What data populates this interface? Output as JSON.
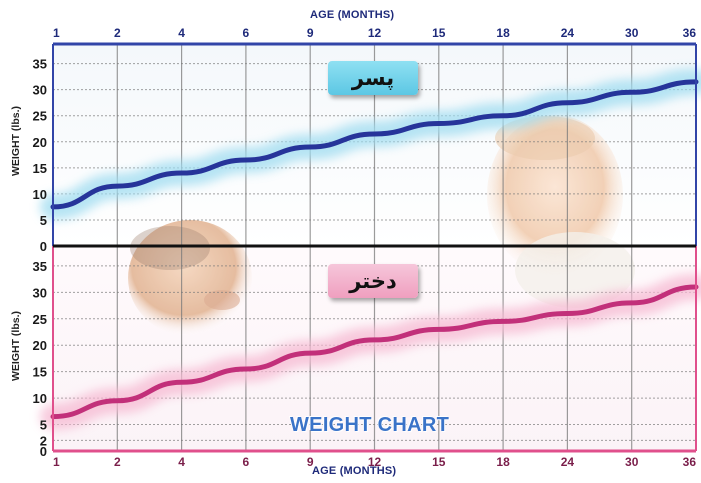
{
  "chart_data": [
    {
      "panel": "boy",
      "type": "line",
      "tag_label": "پسر",
      "xlabel": "AGE (MONTHS)",
      "ylabel": "WEIGHT (lbs.)",
      "x_ticks": [
        "1",
        "2",
        "4",
        "6",
        "9",
        "12",
        "15",
        "18",
        "24",
        "30",
        "36"
      ],
      "y_ticks": [
        "0",
        "5",
        "10",
        "15",
        "20",
        "25",
        "30",
        "35"
      ],
      "ylim": [
        0,
        38
      ],
      "grid": true,
      "series": [
        {
          "x": [
            "1",
            "2",
            "4",
            "6",
            "9",
            "12",
            "15",
            "18",
            "24",
            "30",
            "36"
          ],
          "values": [
            7.5,
            11.5,
            14,
            16.5,
            19,
            21.5,
            23.5,
            25,
            27.5,
            29.5,
            31.5
          ]
        }
      ]
    },
    {
      "panel": "girl",
      "type": "line",
      "tag_label": "دختر",
      "xlabel": "AGE (MONTHS)",
      "ylabel": "WEIGHT (lbs.)",
      "x_ticks": [
        "1",
        "2",
        "4",
        "6",
        "9",
        "12",
        "15",
        "18",
        "24",
        "30",
        "36"
      ],
      "y_ticks": [
        "0",
        "2",
        "5",
        "10",
        "15",
        "20",
        "25",
        "30",
        "35"
      ],
      "ylim": [
        0,
        38
      ],
      "grid": true,
      "series": [
        {
          "x": [
            "1",
            "2",
            "4",
            "6",
            "9",
            "12",
            "15",
            "18",
            "24",
            "30",
            "36"
          ],
          "values": [
            6.5,
            9.5,
            13,
            15.5,
            18.5,
            21,
            23,
            24.5,
            26,
            28,
            31
          ]
        }
      ]
    }
  ],
  "chart_title": "WEIGHT CHART",
  "colors": {
    "frame_top": "#3245a8",
    "frame_bottom": "#e0508c",
    "boy_line": "#26349a",
    "boy_band": "#9fdcf0",
    "girl_line": "#c2307a",
    "girl_band": "#f6b9d2",
    "grid": "#7a7a7a",
    "tick_text": "#1a1a1a"
  }
}
